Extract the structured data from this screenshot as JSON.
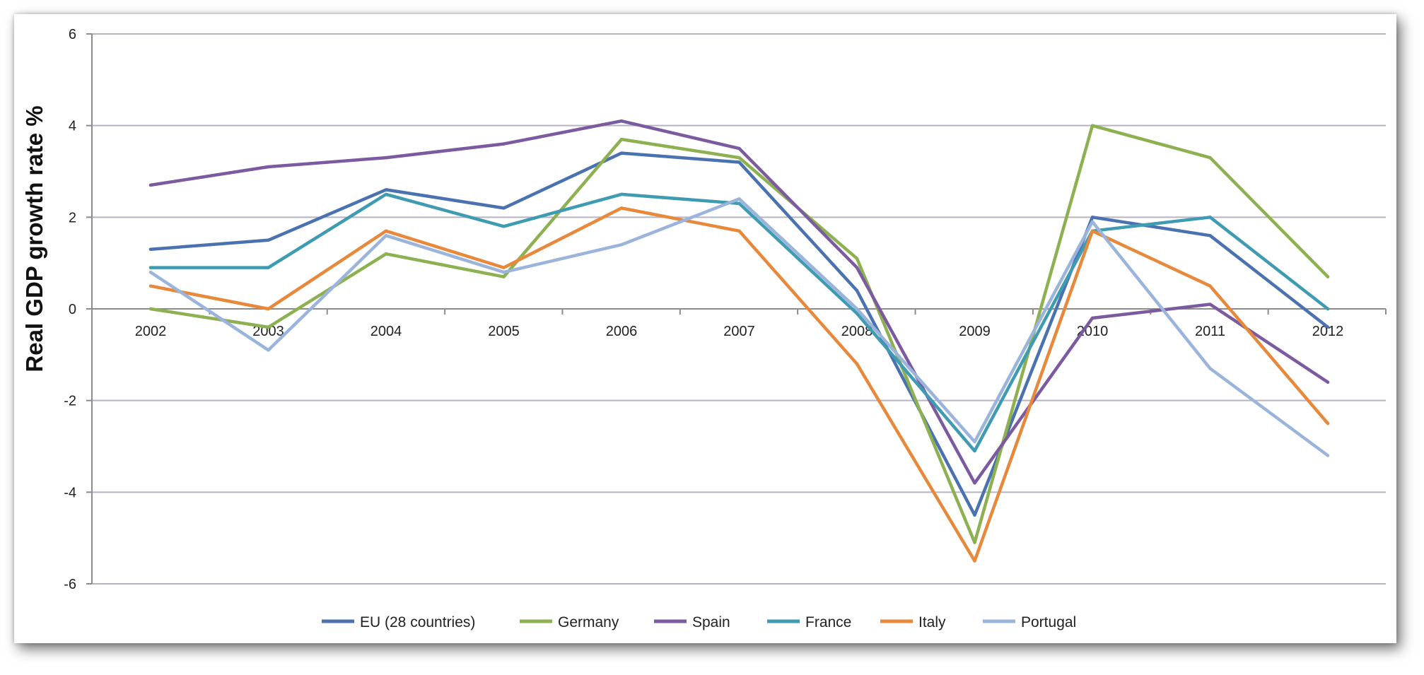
{
  "chart_data": {
    "type": "line",
    "title": "",
    "xlabel": "",
    "ylabel": "Real GDP growth rate %",
    "x": [
      "2002",
      "2003",
      "2004",
      "2005",
      "2006",
      "2007",
      "2008",
      "2009",
      "2010",
      "2011",
      "2012"
    ],
    "ylim": [
      -6,
      6
    ],
    "yticks": [
      "6",
      "4",
      "2",
      "0",
      "-2",
      "-4",
      "-6"
    ],
    "grid": true,
    "legend_position": "bottom",
    "series": [
      {
        "name": "EU (28 countries)",
        "color": "#4a72b0",
        "values": [
          1.3,
          1.5,
          2.6,
          2.2,
          3.4,
          3.2,
          0.4,
          -4.5,
          2.0,
          1.6,
          -0.4
        ]
      },
      {
        "name": "Germany",
        "color": "#8db050",
        "values": [
          0.0,
          -0.4,
          1.2,
          0.7,
          3.7,
          3.3,
          1.1,
          -5.1,
          4.0,
          3.3,
          0.7
        ]
      },
      {
        "name": "Spain",
        "color": "#7b5aa0",
        "values": [
          2.7,
          3.1,
          3.3,
          3.6,
          4.1,
          3.5,
          0.9,
          -3.8,
          -0.2,
          0.1,
          -1.6
        ]
      },
      {
        "name": "France",
        "color": "#3e9bb2",
        "values": [
          0.9,
          0.9,
          2.5,
          1.8,
          2.5,
          2.3,
          -0.1,
          -3.1,
          1.7,
          2.0,
          0.0
        ]
      },
      {
        "name": "Italy",
        "color": "#e8883a",
        "values": [
          0.5,
          0.0,
          1.7,
          0.9,
          2.2,
          1.7,
          -1.2,
          -5.5,
          1.7,
          0.5,
          -2.5
        ]
      },
      {
        "name": "Portugal",
        "color": "#9bb4dc",
        "values": [
          0.8,
          -0.9,
          1.6,
          0.8,
          1.4,
          2.4,
          0.0,
          -2.9,
          1.9,
          -1.3,
          -3.2
        ]
      }
    ]
  }
}
